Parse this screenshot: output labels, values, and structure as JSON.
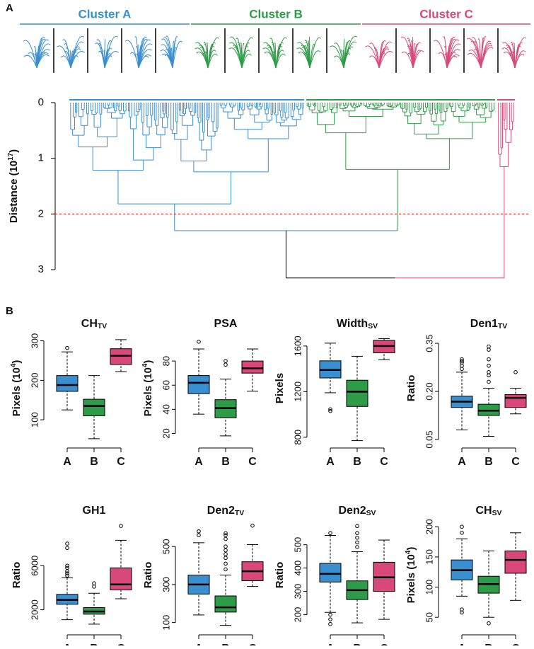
{
  "panel_labels": [
    "A",
    "B"
  ],
  "chart_data": [
    {
      "type": "dendrogram",
      "ylabel": [
        "Distance (10",
        "17",
        ")"
      ],
      "ylim": [
        0,
        3
      ],
      "yticks": [
        0,
        1,
        2,
        3
      ],
      "cut_height": 2,
      "cut_color": "#e0302a",
      "clusters": [
        {
          "name": "Cluster A",
          "color": "#3a8fd0",
          "height": 1.82
        },
        {
          "name": "Cluster B",
          "color": "#2e9b48",
          "height": 1.2
        },
        {
          "name": "Cluster C",
          "color": "#d9487a",
          "height": 1.15
        }
      ],
      "merges": [
        2.3,
        3.15
      ]
    },
    {
      "type": "box",
      "title": [
        "CH",
        "TV"
      ],
      "ylabel": [
        "Pixels (10",
        "4",
        ")"
      ],
      "categories": [
        "A",
        "B",
        "C"
      ],
      "colors": [
        "#3a8fd0",
        "#2e9b48",
        "#d9487a"
      ],
      "ylim": [
        50,
        310
      ],
      "yticks": [
        100,
        200,
        300
      ],
      "boxes": [
        {
          "min": 125,
          "q1": 172,
          "median": 188,
          "q3": 212,
          "max": 272,
          "outliers": [
            282
          ]
        },
        {
          "min": 52,
          "q1": 110,
          "median": 135,
          "q3": 152,
          "max": 212,
          "outliers": []
        },
        {
          "min": 222,
          "q1": 240,
          "median": 262,
          "q3": 280,
          "max": 303,
          "outliers": []
        }
      ]
    },
    {
      "type": "box",
      "title": [
        "PSA"
      ],
      "ylabel": [
        "Pixels (10",
        "4",
        ")"
      ],
      "categories": [
        "A",
        "B",
        "C"
      ],
      "colors": [
        "#3a8fd0",
        "#2e9b48",
        "#d9487a"
      ],
      "ylim": [
        15,
        100
      ],
      "yticks": [
        20,
        40,
        60,
        80
      ],
      "boxes": [
        {
          "min": 36,
          "q1": 53,
          "median": 62,
          "q3": 68,
          "max": 90,
          "outliers": [
            96
          ]
        },
        {
          "min": 18,
          "q1": 33,
          "median": 41,
          "q3": 48,
          "max": 65,
          "outliers": [
            77,
            80
          ]
        },
        {
          "min": 55,
          "q1": 70,
          "median": 74,
          "q3": 80,
          "max": 90,
          "outliers": []
        }
      ]
    },
    {
      "type": "box",
      "title": [
        "Width",
        "SV"
      ],
      "ylabel": [
        "Pixels"
      ],
      "categories": [
        "A",
        "B",
        "C"
      ],
      "colors": [
        "#3a8fd0",
        "#2e9b48",
        "#d9487a"
      ],
      "ylim": [
        780,
        1680
      ],
      "yticks": [
        800,
        1200,
        1600
      ],
      "boxes": [
        {
          "min": 1190,
          "q1": 1320,
          "median": 1390,
          "q3": 1470,
          "max": 1625,
          "outliers": [
            1030,
            1045
          ]
        },
        {
          "min": 770,
          "q1": 1070,
          "median": 1200,
          "q3": 1300,
          "max": 1510,
          "outliers": []
        },
        {
          "min": 1480,
          "q1": 1540,
          "median": 1600,
          "q3": 1650,
          "max": 1665,
          "outliers": []
        }
      ]
    },
    {
      "type": "box",
      "title": [
        "Den1",
        "TV"
      ],
      "ylabel": [
        "Ratio"
      ],
      "categories": [
        "A",
        "B",
        "C"
      ],
      "colors": [
        "#3a8fd0",
        "#2e9b48",
        "#d9487a"
      ],
      "ylim": [
        0.05,
        0.37
      ],
      "yticks": [
        0.05,
        {
          "value": 0.2,
          "label": "0.20"
        },
        0.35
      ],
      "boxes": [
        {
          "min": 0.08,
          "q1": 0.15,
          "median": 0.168,
          "q3": 0.185,
          "max": 0.26,
          "outliers": [
            0.27,
            0.28,
            0.29,
            0.295,
            0.3
          ]
        },
        {
          "min": 0.06,
          "q1": 0.125,
          "median": 0.14,
          "q3": 0.16,
          "max": 0.21,
          "outliers": [
            0.23,
            0.25,
            0.26,
            0.28,
            0.3,
            0.33,
            0.34
          ]
        },
        {
          "min": 0.13,
          "q1": 0.15,
          "median": 0.18,
          "q3": 0.19,
          "max": 0.21,
          "outliers": [
            0.26
          ]
        }
      ]
    },
    {
      "type": "box",
      "title": [
        "GH1"
      ],
      "ylabel": [
        "Ratio"
      ],
      "categories": [
        "A",
        "B",
        "C"
      ],
      "colors": [
        "#3a8fd0",
        "#2e9b48",
        "#d9487a"
      ],
      "ylim": [
        500,
        9800
      ],
      "yticks": [
        2000,
        6000
      ],
      "boxes": [
        {
          "min": 1100,
          "q1": 2500,
          "median": 2900,
          "q3": 3400,
          "max": 4900,
          "outliers": [
            5100,
            5300,
            5500,
            5800,
            6000,
            7600,
            8000
          ]
        },
        {
          "min": 700,
          "q1": 1600,
          "median": 1850,
          "q3": 2200,
          "max": 3500,
          "outliers": [
            4100,
            4400
          ]
        },
        {
          "min": 3000,
          "q1": 3800,
          "median": 4300,
          "q3": 5800,
          "max": 8300,
          "outliers": [
            9600
          ]
        }
      ]
    },
    {
      "type": "box",
      "title": [
        "Den2",
        "TV"
      ],
      "ylabel": [
        "Ratio"
      ],
      "categories": [
        "A",
        "B",
        "C"
      ],
      "colors": [
        "#3a8fd0",
        "#2e9b48",
        "#d9487a"
      ],
      "ylim": [
        80,
        620
      ],
      "yticks": [
        100,
        300,
        500
      ],
      "boxes": [
        {
          "min": 140,
          "q1": 250,
          "median": 300,
          "q3": 350,
          "max": 520,
          "outliers": [
            560,
            580
          ]
        },
        {
          "min": 85,
          "q1": 155,
          "median": 180,
          "q3": 240,
          "max": 350,
          "outliers": [
            380,
            410,
            440,
            460,
            480,
            500,
            540,
            560,
            570
          ]
        },
        {
          "min": 290,
          "q1": 320,
          "median": 370,
          "q3": 420,
          "max": 510,
          "outliers": [
            610
          ]
        }
      ]
    },
    {
      "type": "box",
      "title": [
        "Den2",
        "SV"
      ],
      "ylabel": [
        "Ratio"
      ],
      "categories": [
        "A",
        "B",
        "C"
      ],
      "colors": [
        "#3a8fd0",
        "#2e9b48",
        "#d9487a"
      ],
      "ylim": [
        150,
        590
      ],
      "yticks": [
        200,
        300,
        400,
        500
      ],
      "boxes": [
        {
          "min": 210,
          "q1": 340,
          "median": 375,
          "q3": 420,
          "max": 540,
          "outliers": [
            160,
            180,
            200,
            550
          ]
        },
        {
          "min": 165,
          "q1": 265,
          "median": 305,
          "q3": 345,
          "max": 470,
          "outliers": [
            490,
            510,
            530,
            550,
            580
          ]
        },
        {
          "min": 180,
          "q1": 300,
          "median": 360,
          "q3": 425,
          "max": 520,
          "outliers": []
        }
      ]
    },
    {
      "type": "box",
      "title": [
        "CH",
        "SV"
      ],
      "ylabel": [
        "Pixels (10",
        "4",
        ")"
      ],
      "categories": [
        "A",
        "B",
        "C"
      ],
      "colors": [
        "#3a8fd0",
        "#2e9b48",
        "#d9487a"
      ],
      "ylim": [
        35,
        205
      ],
      "yticks": [
        50,
        100,
        150,
        200
      ],
      "boxes": [
        {
          "min": 85,
          "q1": 112,
          "median": 128,
          "q3": 145,
          "max": 180,
          "outliers": [
            58,
            63,
            190,
            200
          ]
        },
        {
          "min": 50,
          "q1": 90,
          "median": 105,
          "q3": 118,
          "max": 160,
          "outliers": [
            40
          ]
        },
        {
          "min": 78,
          "q1": 123,
          "median": 145,
          "q3": 160,
          "max": 190,
          "outliers": []
        }
      ]
    }
  ]
}
